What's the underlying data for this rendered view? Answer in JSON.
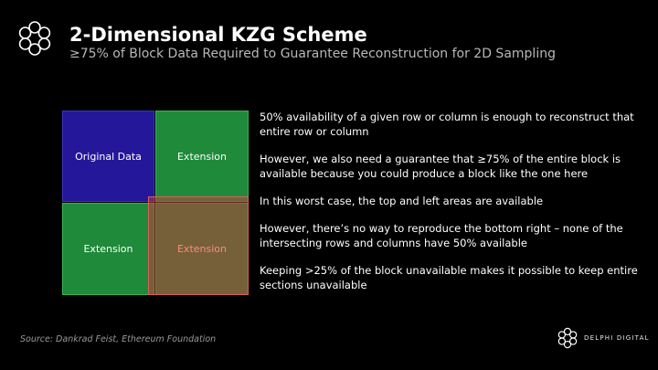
{
  "header": {
    "title": "2-Dimensional KZG Scheme",
    "subtitle": "≥75% of Block Data Required to Guarantee Reconstruction for 2D Sampling"
  },
  "grid": {
    "top_left": "Original Data",
    "top_right": "Extension",
    "bottom_left": "Extension",
    "bottom_right": "Extension",
    "colors": {
      "original": "#24179a",
      "extension": "#1f8a3a",
      "unavailable": "#bc3e38"
    }
  },
  "bullets": [
    "50% availability of a given row or column is enough to reconstruct that entire row or column",
    "However, we also need a guarantee that ≥75% of the entire block is available because you could produce a block like the one here",
    "In this worst case, the top and left areas are available",
    "However, there’s no way to reproduce the bottom right – none of the intersecting rows and columns have 50% available",
    "Keeping >25% of the block unavailable makes it possible to keep entire sections unavailable"
  ],
  "footer": {
    "source": "Source: Dankrad Feist, Ethereum Foundation",
    "brand": "DELPHI DIGITAL"
  },
  "icons": {
    "logo": "delphi-flower-icon",
    "brand": "delphi-flower-icon"
  }
}
